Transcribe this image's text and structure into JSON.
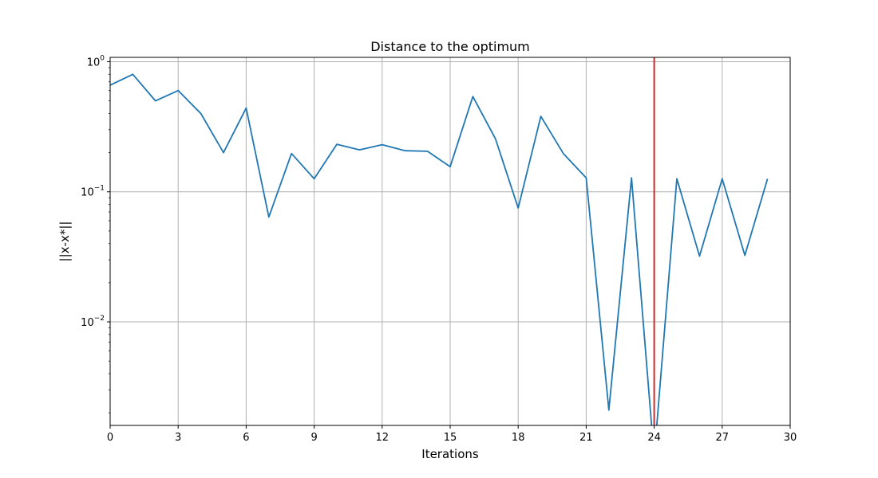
{
  "chart_data": {
    "type": "line",
    "title": "Distance to the optimum",
    "xlabel": "Iterations",
    "ylabel": "||x-x*||",
    "xlim": [
      0,
      30
    ],
    "ylim": [
      0.0016,
      1.08
    ],
    "yscale": "log",
    "grid": true,
    "x_ticks": [
      0,
      3,
      6,
      9,
      12,
      15,
      18,
      21,
      24,
      27,
      30
    ],
    "x_tick_labels": [
      "0",
      "3",
      "6",
      "9",
      "12",
      "15",
      "18",
      "21",
      "24",
      "27",
      "30"
    ],
    "y_ticks": [
      0.01,
      0.1,
      1
    ],
    "y_tick_labels": [
      {
        "base": "10",
        "exp": "−2"
      },
      {
        "base": "10",
        "exp": "−1"
      },
      {
        "base": "10",
        "exp": "0"
      }
    ],
    "series": [
      {
        "color": "#1f77b4",
        "x": [
          0,
          1,
          2,
          3,
          4,
          5,
          6,
          7,
          8,
          9,
          10,
          11,
          12,
          13,
          14,
          15,
          16,
          17,
          18,
          19,
          20,
          21,
          22,
          23,
          24,
          25,
          26,
          27,
          28,
          29
        ],
        "y": [
          0.66,
          0.8,
          0.5,
          0.6,
          0.4,
          0.2,
          0.44,
          0.064,
          0.197,
          0.126,
          0.232,
          0.21,
          0.23,
          0.207,
          0.205,
          0.156,
          0.54,
          0.255,
          0.075,
          0.38,
          0.196,
          0.128,
          0.0021,
          0.128,
          0,
          0.126,
          0.032,
          0.126,
          0.0325,
          0.126
        ]
      }
    ],
    "vline": {
      "x": 24,
      "color": "#d62728"
    }
  }
}
